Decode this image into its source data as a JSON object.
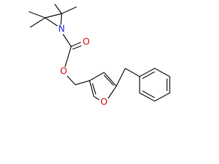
{
  "atoms": {
    "aziridine_n": "N",
    "carbonyl_o": "O",
    "ester_o": "O",
    "furan_o": "O"
  }
}
